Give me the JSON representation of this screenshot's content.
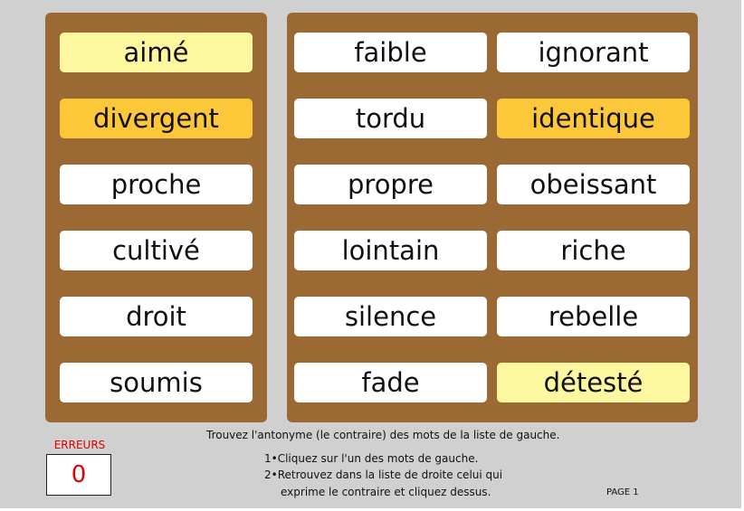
{
  "left_words": [
    {
      "label": "aimé",
      "state": "pale"
    },
    {
      "label": "divergent",
      "state": "gold"
    },
    {
      "label": "proche",
      "state": "normal"
    },
    {
      "label": "cultivé",
      "state": "normal"
    },
    {
      "label": "droit",
      "state": "normal"
    },
    {
      "label": "soumis",
      "state": "normal"
    }
  ],
  "right_words_col1": [
    {
      "label": "faible",
      "state": "normal"
    },
    {
      "label": "tordu",
      "state": "normal"
    },
    {
      "label": "propre",
      "state": "normal"
    },
    {
      "label": "lointain",
      "state": "normal"
    },
    {
      "label": "silence",
      "state": "normal"
    },
    {
      "label": "fade",
      "state": "normal"
    }
  ],
  "right_words_col2": [
    {
      "label": "ignorant",
      "state": "normal"
    },
    {
      "label": "identique",
      "state": "gold"
    },
    {
      "label": "obeissant",
      "state": "normal"
    },
    {
      "label": "riche",
      "state": "normal"
    },
    {
      "label": "rebelle",
      "state": "normal"
    },
    {
      "label": "détesté",
      "state": "pale"
    }
  ],
  "errors": {
    "label": "ERREURS",
    "count": "0"
  },
  "instructions": {
    "title": "Trouvez l'antonyme (le contraire) des mots de la liste de gauche.",
    "step1": "1•Cliquez sur l'un des mots de gauche.",
    "step2_line1": "2•Retrouvez dans la liste de droite celui qui",
    "step2_line2": "exprime le contraire et cliquez dessus."
  },
  "page_label": "PAGE 1",
  "colors": {
    "background": "#d0d0d0",
    "panel": "#9b6a34",
    "highlight_pale": "#fdf7a0",
    "highlight_gold": "#fcc83a",
    "error_red": "#e00000"
  }
}
